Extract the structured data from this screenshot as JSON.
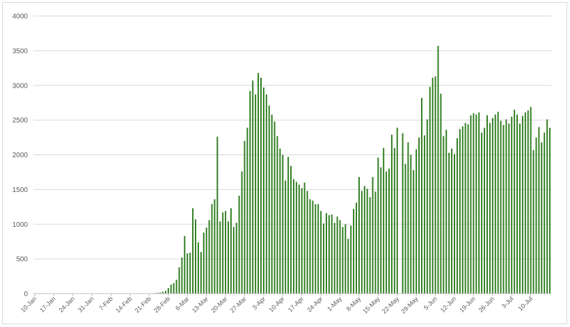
{
  "chart_data": {
    "type": "bar",
    "title": "",
    "xlabel": "",
    "ylabel": "",
    "ylim": [
      0,
      4000
    ],
    "yticks": [
      0,
      500,
      1000,
      1500,
      2000,
      2500,
      3000,
      3500,
      4000
    ],
    "grid": true,
    "legend": "none",
    "bar_color": "#2e7d1f",
    "start_date": "10-Jan",
    "x_tick_labels": [
      "10-Jan",
      "17-Jan",
      "24-Jan",
      "31-Jan",
      "7-Feb",
      "14-Feb",
      "21-Feb",
      "28-Feb",
      "6-Mar",
      "13-Mar",
      "20-Mar",
      "27-Mar",
      "3-Apr",
      "10-Apr",
      "17-Apr",
      "24-Apr",
      "1-May",
      "8-May",
      "15-May",
      "22-May",
      "29-May",
      "5-Jun",
      "12-Jun",
      "19-Jun",
      "26-Jun",
      "3-Jul",
      "10-Jul"
    ],
    "values": [
      0,
      0,
      0,
      0,
      0,
      0,
      0,
      0,
      0,
      0,
      0,
      0,
      0,
      0,
      0,
      0,
      0,
      0,
      0,
      0,
      0,
      0,
      0,
      0,
      0,
      0,
      0,
      0,
      0,
      0,
      0,
      0,
      0,
      0,
      0,
      0,
      0,
      0,
      0,
      0,
      0,
      0,
      2,
      5,
      8,
      12,
      16,
      25,
      40,
      80,
      130,
      150,
      200,
      380,
      520,
      830,
      580,
      590,
      1230,
      1070,
      740,
      600,
      880,
      950,
      1060,
      1290,
      1360,
      2260,
      1040,
      1170,
      1190,
      1040,
      1230,
      960,
      1020,
      1410,
      1760,
      2200,
      2390,
      2920,
      3070,
      2870,
      3180,
      3110,
      2970,
      2870,
      2710,
      2580,
      2480,
      2270,
      2090,
      2000,
      1630,
      1970,
      1840,
      1650,
      1610,
      1570,
      1520,
      1600,
      1480,
      1360,
      1340,
      1290,
      1290,
      1190,
      1010,
      1160,
      1130,
      1140,
      1020,
      1110,
      1060,
      960,
      1000,
      790,
      980,
      1220,
      1310,
      1680,
      1480,
      1550,
      1510,
      1390,
      1680,
      1470,
      1960,
      1820,
      2100,
      1760,
      1800,
      2290,
      2100,
      2390,
      0,
      2310,
      1870,
      2180,
      2000,
      1780,
      2080,
      2250,
      2820,
      2280,
      2510,
      2980,
      3110,
      3130,
      3570,
      2880,
      2270,
      2360,
      2030,
      2090,
      2010,
      2240,
      2370,
      2410,
      2460,
      2440,
      2570,
      2600,
      2580,
      2610,
      2320,
      2390,
      2570,
      2460,
      2530,
      2580,
      2620,
      2490,
      2430,
      2510,
      2450,
      2550,
      2650,
      2580,
      2450,
      2560,
      2610,
      2640,
      2690,
      2070,
      2250,
      2400,
      2180,
      2320,
      2510,
      2390
    ]
  }
}
